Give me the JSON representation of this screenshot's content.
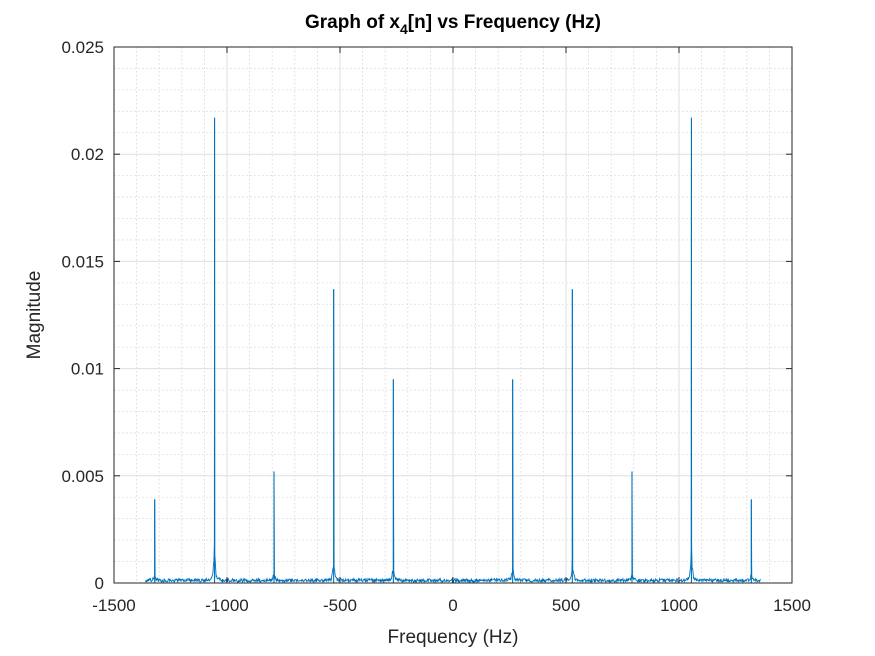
{
  "chart_data": {
    "type": "line",
    "title": {
      "prefix": "Graph of x",
      "subscript": "4",
      "suffix": "[n] vs Frequency (Hz)"
    },
    "xlabel": "Frequency (Hz)",
    "ylabel": "Magnitude",
    "xlim": [
      -1500,
      1500
    ],
    "ylim": [
      0,
      0.025
    ],
    "xticks": [
      -1500,
      -1000,
      -500,
      0,
      500,
      1000,
      1500
    ],
    "xtick_labels": [
      "-1500",
      "-1000",
      "-500",
      "0",
      "500",
      "1000",
      "1500"
    ],
    "yticks": [
      0,
      0.005,
      0.01,
      0.015,
      0.02,
      0.025
    ],
    "ytick_labels": [
      "0",
      "0.005",
      "0.01",
      "0.015",
      "0.02",
      "0.025"
    ],
    "grid": true,
    "minor_grid": true,
    "series_color": "#0072BD",
    "peaks": [
      {
        "x": -1320,
        "y": 0.0039
      },
      {
        "x": -1055,
        "y": 0.0217
      },
      {
        "x": -792,
        "y": 0.0052
      },
      {
        "x": -528,
        "y": 0.0137
      },
      {
        "x": -264,
        "y": 0.0095
      },
      {
        "x": 264,
        "y": 0.0095
      },
      {
        "x": 528,
        "y": 0.0137
      },
      {
        "x": 792,
        "y": 0.0052
      },
      {
        "x": 1055,
        "y": 0.0217
      },
      {
        "x": 1320,
        "y": 0.0039
      }
    ],
    "baseline_noise": 0.0002
  }
}
